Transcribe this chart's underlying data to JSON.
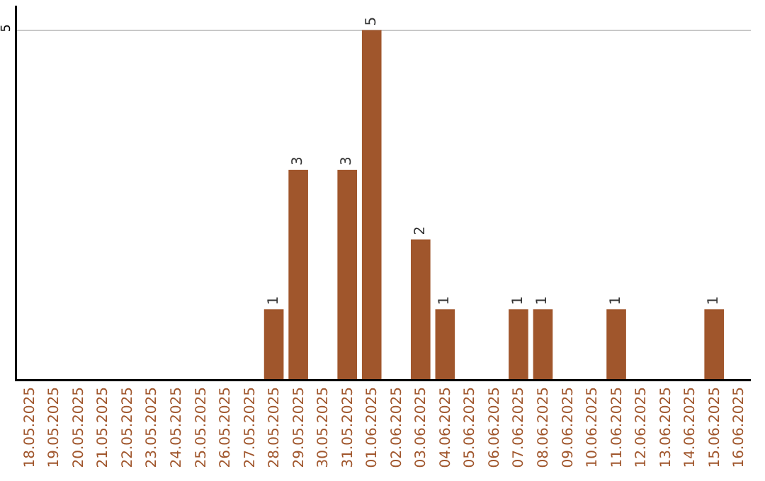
{
  "chart_data": {
    "type": "bar",
    "categories": [
      "18.05.2025",
      "19.05.2025",
      "20.05.2025",
      "21.05.2025",
      "22.05.2025",
      "23.05.2025",
      "24.05.2025",
      "25.05.2025",
      "26.05.2025",
      "27.05.2025",
      "28.05.2025",
      "29.05.2025",
      "30.05.2025",
      "31.05.2025",
      "01.06.2025",
      "02.06.2025",
      "03.06.2025",
      "04.06.2025",
      "05.06.2025",
      "06.06.2025",
      "07.06.2025",
      "08.06.2025",
      "09.06.2025",
      "10.06.2025",
      "11.06.2025",
      "12.06.2025",
      "13.06.2025",
      "14.06.2025",
      "15.06.2025",
      "16.06.2025"
    ],
    "values": [
      0,
      0,
      0,
      0,
      0,
      0,
      0,
      0,
      0,
      0,
      1,
      3,
      0,
      3,
      5,
      0,
      2,
      1,
      0,
      0,
      1,
      1,
      0,
      0,
      1,
      0,
      0,
      0,
      1,
      0
    ],
    "value_labels": [
      null,
      null,
      null,
      null,
      null,
      null,
      null,
      null,
      null,
      null,
      "1",
      "3",
      null,
      "3",
      "5",
      null,
      "2",
      "1",
      null,
      null,
      "1",
      "1",
      null,
      null,
      "1",
      null,
      null,
      null,
      "1",
      null
    ],
    "color": "#a0562c",
    "ylim": [
      0,
      5.35
    ],
    "yticks": [
      5
    ],
    "grid": "y"
  }
}
